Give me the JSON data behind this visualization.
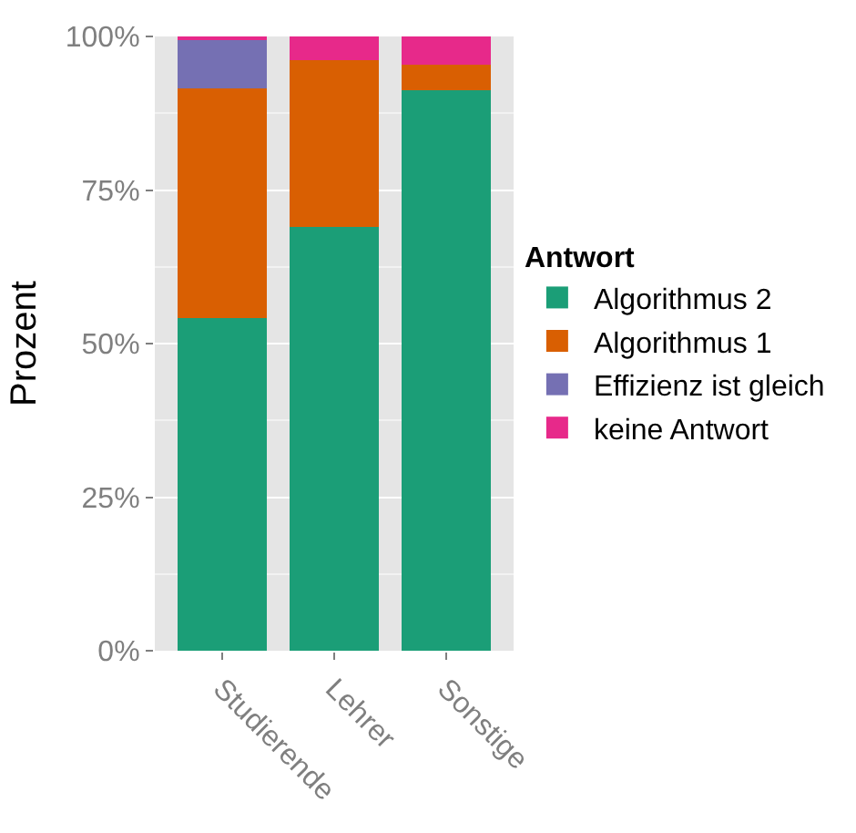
{
  "chart_data": {
    "type": "bar",
    "stacked": true,
    "ylabel": "Prozent",
    "legend_title": "Antwort",
    "legend": "right",
    "categories": [
      "Studierende",
      "Lehrer",
      "Sonstige"
    ],
    "series": [
      {
        "name": "Algorithmus 2",
        "color": "#1b9e77",
        "values": [
          54.1,
          69.0,
          91.2
        ]
      },
      {
        "name": "Algorithmus 1",
        "color": "#d95f02",
        "values": [
          37.5,
          27.1,
          4.2
        ]
      },
      {
        "name": "Effizienz ist gleich",
        "color": "#7570b3",
        "values": [
          8.1,
          0,
          0
        ]
      },
      {
        "name": "keine Antwort",
        "color": "#e7298a",
        "values": [
          0.3,
          3.9,
          4.6
        ]
      }
    ],
    "ylim": [
      0,
      100
    ],
    "yticks": [
      {
        "value": 0,
        "label": "0%"
      },
      {
        "value": 25,
        "label": "25%"
      },
      {
        "value": 50,
        "label": "50%"
      },
      {
        "value": 75,
        "label": "75%"
      },
      {
        "value": 100,
        "label": "100%"
      }
    ],
    "grid": true
  }
}
